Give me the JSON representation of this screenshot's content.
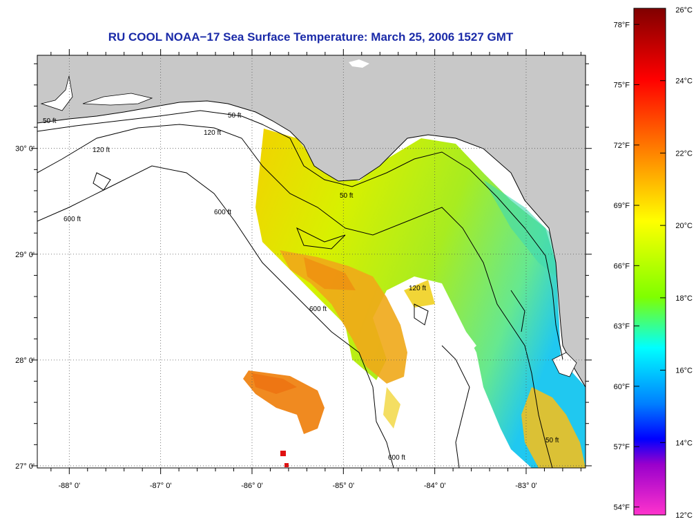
{
  "title": "RU COOL  NOAA−17  Sea Surface Temperature:  March 25, 2006 1527 GMT",
  "map": {
    "lon_range": [
      -88.35,
      -82.35
    ],
    "lat_range": [
      26.98,
      30.88
    ],
    "lon_ticks": [
      {
        "value": -88,
        "label": "-88° 0'"
      },
      {
        "value": -87,
        "label": "-87° 0'"
      },
      {
        "value": -86,
        "label": "-86° 0'"
      },
      {
        "value": -85,
        "label": "-85° 0'"
      },
      {
        "value": -84,
        "label": "-84° 0'"
      },
      {
        "value": -83,
        "label": "-83° 0'"
      }
    ],
    "lat_ticks": [
      {
        "value": 30,
        "label": "30° 0'"
      },
      {
        "value": 29,
        "label": "29° 0'"
      },
      {
        "value": 28,
        "label": "28° 0'"
      },
      {
        "value": 27,
        "label": "27° 0'"
      }
    ],
    "contour_labels": [
      "50 ft",
      "120 ft",
      "600 ft"
    ],
    "colors": {
      "land": "#c8c8c8",
      "nodata": "#ffffff",
      "grid": "#555555"
    }
  },
  "colorbar": {
    "celsius": [
      {
        "value": 26,
        "label": "26°C"
      },
      {
        "value": 24,
        "label": "24°C"
      },
      {
        "value": 22,
        "label": "22°C"
      },
      {
        "value": 20,
        "label": "20°C"
      },
      {
        "value": 18,
        "label": "18°C"
      },
      {
        "value": 16,
        "label": "16°C"
      },
      {
        "value": 14,
        "label": "14°C"
      },
      {
        "value": 12,
        "label": "12°C"
      }
    ],
    "fahrenheit": [
      {
        "value": 78,
        "label": "78°F"
      },
      {
        "value": 75,
        "label": "75°F"
      },
      {
        "value": 72,
        "label": "72°F"
      },
      {
        "value": 69,
        "label": "69°F"
      },
      {
        "value": 66,
        "label": "66°F"
      },
      {
        "value": 63,
        "label": "63°F"
      },
      {
        "value": 60,
        "label": "60°F"
      },
      {
        "value": 57,
        "label": "57°F"
      },
      {
        "value": 54,
        "label": "54°F"
      }
    ],
    "range_c": [
      12,
      26
    ],
    "gradient": [
      "#800000",
      "#ff0000",
      "#ff7f00",
      "#ffff00",
      "#7fff00",
      "#00ffff",
      "#0080ff",
      "#0000ff",
      "#9900cc",
      "#ff33cc"
    ]
  }
}
